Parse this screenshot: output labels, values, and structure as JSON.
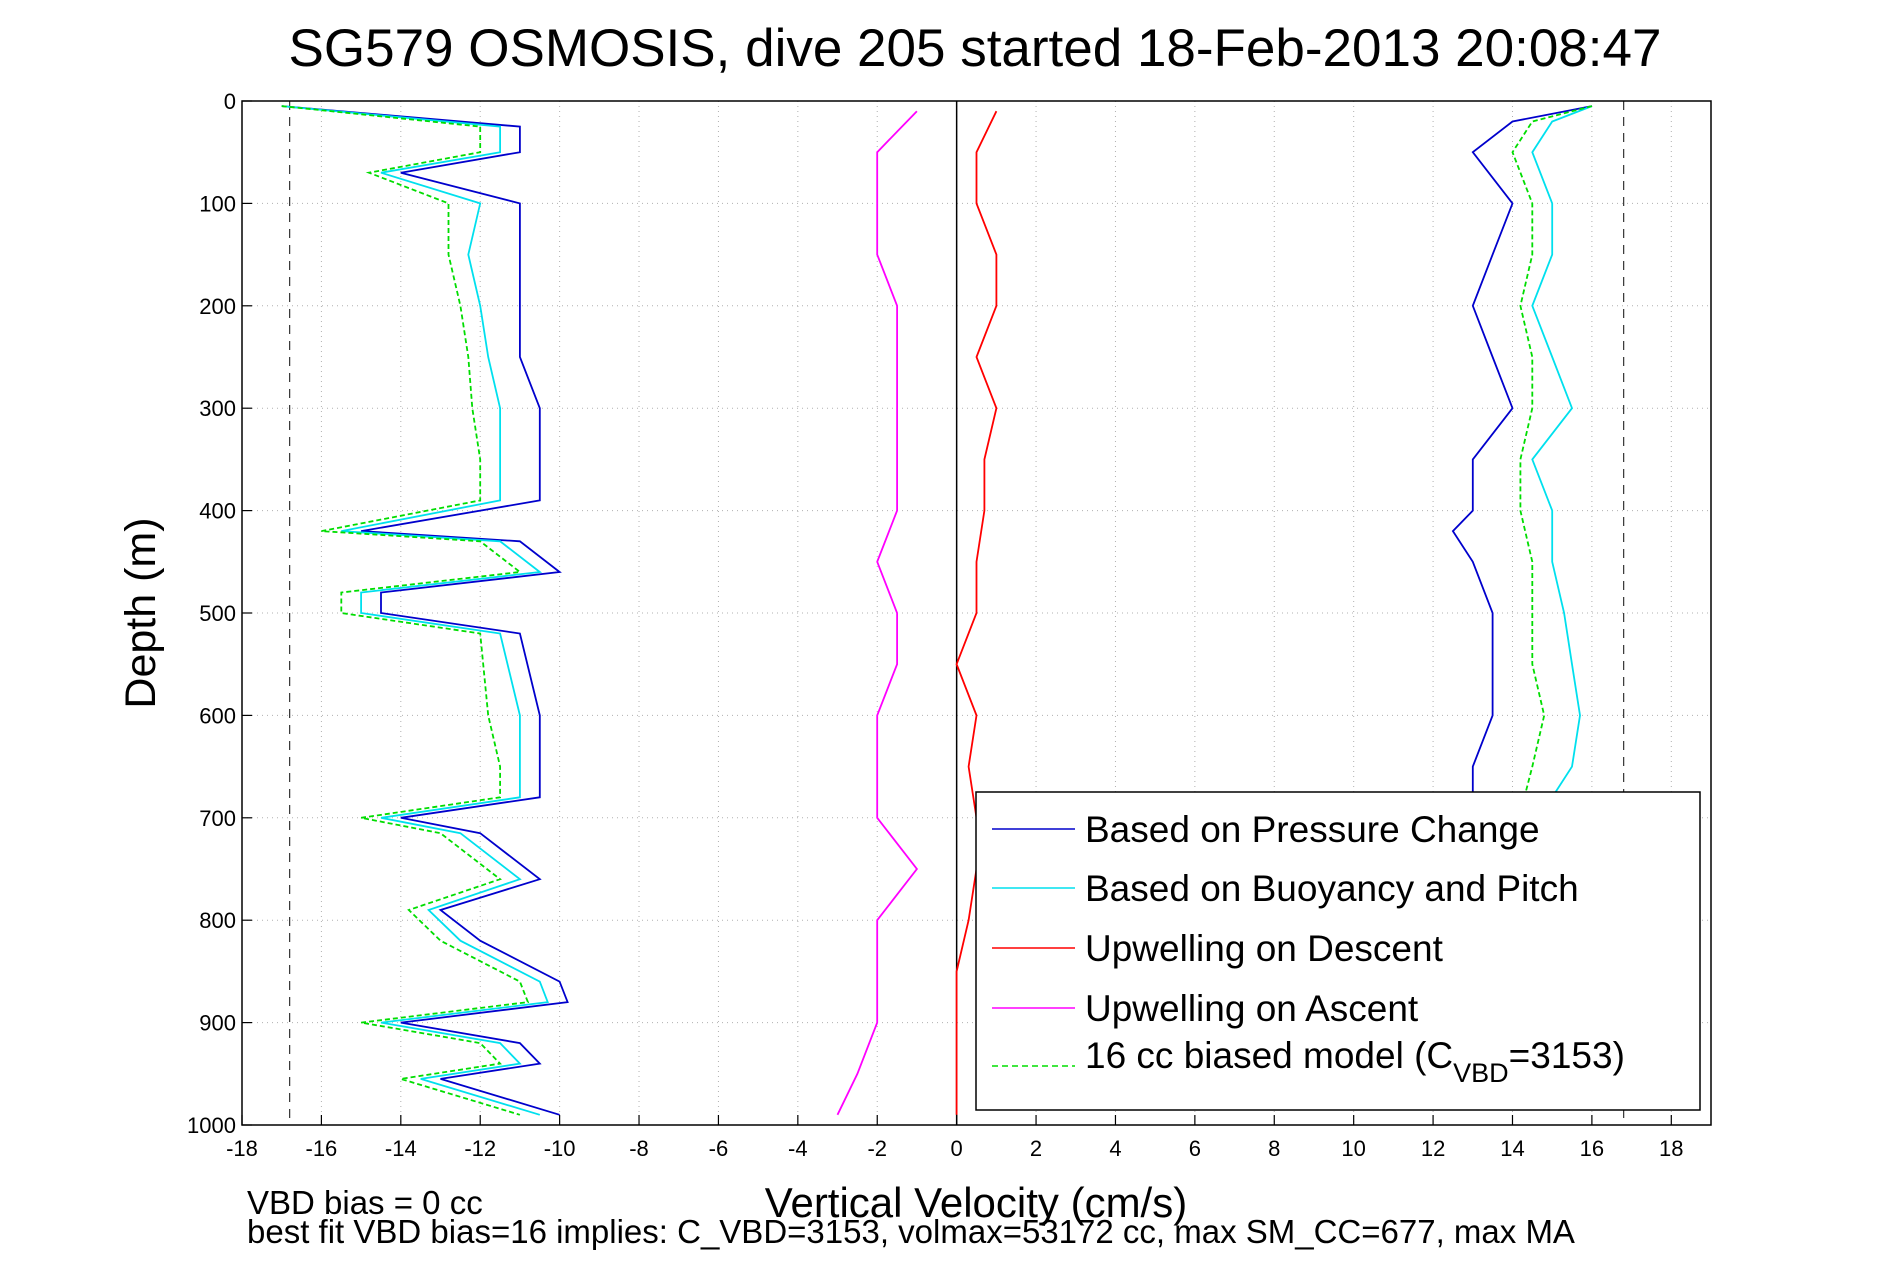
{
  "chart_data": {
    "type": "line",
    "title": "SG579 OSMOSIS, dive 205 started 18-Feb-2013 20:08:47",
    "xlabel": "Vertical Velocity (cm/s)",
    "ylabel": "Depth (m)",
    "xlim": [
      -18,
      19
    ],
    "ylim": [
      1000,
      0
    ],
    "y_reversed": true,
    "grid": true,
    "xticks": [
      -18,
      -16,
      -14,
      -12,
      -10,
      -8,
      -6,
      -4,
      -2,
      0,
      2,
      4,
      6,
      8,
      10,
      12,
      14,
      16,
      18
    ],
    "yticks": [
      0,
      100,
      200,
      300,
      400,
      500,
      600,
      700,
      800,
      900,
      1000
    ],
    "xtick_labels": [
      "-18",
      "-16",
      "-14",
      "-12",
      "-10",
      "-8",
      "-6",
      "-4",
      "-2",
      "0",
      "2",
      "4",
      "6",
      "8",
      "10",
      "12",
      "14",
      "16",
      "18"
    ],
    "ytick_labels": [
      "0",
      "100",
      "200",
      "300",
      "400",
      "500",
      "600",
      "700",
      "800",
      "900",
      "1000"
    ],
    "reference_lines_x": [
      -16.8,
      0,
      16.8
    ],
    "legend_position": "bottom-right",
    "legend_entries": [
      {
        "label": "Based on Pressure Change",
        "color": "#0000cc",
        "style": "solid"
      },
      {
        "label": "Based on Buoyancy and Pitch",
        "color": "#00e0ee",
        "style": "solid"
      },
      {
        "label": "Upwelling on Descent",
        "color": "#ff0000",
        "style": "solid"
      },
      {
        "label": "Upwelling on Ascent",
        "color": "#ff00ff",
        "style": "solid"
      },
      {
        "label_main": "16 cc biased model (C",
        "label_sub": "VBD",
        "label_tail": "=3153)",
        "color": "#00dd00",
        "style": "dashed"
      }
    ],
    "footer_lines": [
      "VBD bias = 0 cc",
      "best fit VBD bias=16 implies: C_VBD=3153, volmax=53172 cc, max SM_CC=677, max MA"
    ],
    "series": [
      {
        "name": "Based on Pressure Change (descent)",
        "color": "#0000cc",
        "depth": [
          5,
          25,
          50,
          70,
          100,
          150,
          200,
          250,
          300,
          350,
          390,
          420,
          430,
          460,
          480,
          500,
          520,
          600,
          650,
          680,
          700,
          715,
          760,
          790,
          820,
          860,
          880,
          900,
          920,
          940,
          955,
          990
        ],
        "velocity": [
          -17,
          -11,
          -11,
          -14,
          -11,
          -11,
          -11,
          -11,
          -10.5,
          -10.5,
          -10.5,
          -15,
          -11,
          -10,
          -14.5,
          -14.5,
          -11,
          -10.5,
          -10.5,
          -10.5,
          -14,
          -12,
          -10.5,
          -13,
          -12,
          -10,
          -9.8,
          -14,
          -11,
          -10.5,
          -13,
          -10
        ]
      },
      {
        "name": "Based on Buoyancy and Pitch (descent)",
        "color": "#00e0ee",
        "depth": [
          5,
          25,
          50,
          70,
          100,
          150,
          200,
          250,
          300,
          350,
          390,
          420,
          430,
          460,
          480,
          500,
          520,
          600,
          650,
          680,
          700,
          715,
          760,
          790,
          820,
          860,
          880,
          900,
          920,
          940,
          955,
          990
        ],
        "velocity": [
          -17,
          -11.5,
          -11.5,
          -14.5,
          -12,
          -12.3,
          -12,
          -11.8,
          -11.5,
          -11.5,
          -11.5,
          -15.5,
          -11.5,
          -10.5,
          -15,
          -15,
          -11.5,
          -11,
          -11,
          -11,
          -14.5,
          -12.5,
          -11,
          -13.3,
          -12.5,
          -10.5,
          -10.3,
          -14.5,
          -11.5,
          -11,
          -13.5,
          -10.5
        ]
      },
      {
        "name": "16 cc biased model (descent)",
        "color": "#00dd00",
        "dashed": true,
        "depth": [
          5,
          25,
          50,
          70,
          100,
          150,
          200,
          250,
          300,
          350,
          390,
          420,
          430,
          460,
          480,
          500,
          520,
          600,
          650,
          680,
          700,
          715,
          760,
          790,
          820,
          860,
          880,
          900,
          920,
          940,
          955,
          990
        ],
        "velocity": [
          -17,
          -12,
          -12,
          -14.8,
          -12.8,
          -12.8,
          -12.5,
          -12.3,
          -12.2,
          -12,
          -12,
          -16,
          -12,
          -11,
          -15.5,
          -15.5,
          -12,
          -11.8,
          -11.5,
          -11.5,
          -15,
          -13,
          -11.5,
          -13.8,
          -13,
          -11,
          -10.8,
          -15,
          -12,
          -11.5,
          -14,
          -11
        ]
      },
      {
        "name": "Based on Pressure Change (ascent)",
        "color": "#0000cc",
        "depth": [
          5,
          20,
          50,
          100,
          150,
          200,
          250,
          300,
          350,
          400,
          420,
          450,
          500,
          550,
          600,
          650,
          680
        ],
        "velocity": [
          16,
          14,
          13,
          14,
          13.5,
          13,
          13.5,
          14,
          13,
          13,
          12.5,
          13,
          13.5,
          13.5,
          13.5,
          13,
          13
        ]
      },
      {
        "name": "Based on Buoyancy and Pitch (ascent)",
        "color": "#00e0ee",
        "depth": [
          5,
          20,
          50,
          100,
          150,
          200,
          250,
          300,
          350,
          400,
          450,
          500,
          550,
          600,
          650,
          680
        ],
        "velocity": [
          16,
          15,
          14.5,
          15,
          15,
          14.5,
          15,
          15.5,
          14.5,
          15,
          15,
          15.3,
          15.5,
          15.7,
          15.5,
          15
        ]
      },
      {
        "name": "16 cc biased model (ascent)",
        "color": "#00dd00",
        "dashed": true,
        "depth": [
          5,
          20,
          50,
          100,
          150,
          200,
          250,
          300,
          350,
          400,
          450,
          500,
          550,
          600,
          650,
          680
        ],
        "velocity": [
          16,
          14.5,
          14,
          14.5,
          14.5,
          14.2,
          14.5,
          14.5,
          14.2,
          14.2,
          14.5,
          14.5,
          14.5,
          14.8,
          14.5,
          14.3
        ]
      },
      {
        "name": "Upwelling on Descent",
        "color": "#ff0000",
        "depth": [
          10,
          50,
          100,
          150,
          200,
          250,
          300,
          350,
          400,
          450,
          500,
          550,
          600,
          650,
          700,
          750,
          800,
          850,
          900,
          950,
          990
        ],
        "velocity": [
          1,
          0.5,
          0.5,
          1,
          1,
          0.5,
          1,
          0.7,
          0.7,
          0.5,
          0.5,
          0,
          0.5,
          0.3,
          0.5,
          0.5,
          0.3,
          0,
          0,
          0,
          0
        ]
      },
      {
        "name": "Upwelling on Ascent",
        "color": "#ff00ff",
        "depth": [
          10,
          50,
          100,
          150,
          200,
          250,
          300,
          350,
          400,
          450,
          500,
          550,
          600,
          650,
          700,
          750,
          800,
          850,
          900,
          950,
          990
        ],
        "velocity": [
          -1,
          -2,
          -2,
          -2,
          -1.5,
          -1.5,
          -1.5,
          -1.5,
          -1.5,
          -2,
          -1.5,
          -1.5,
          -2,
          -2,
          -2,
          -1,
          -2,
          -2,
          -2,
          -2.5,
          -3
        ]
      }
    ]
  }
}
